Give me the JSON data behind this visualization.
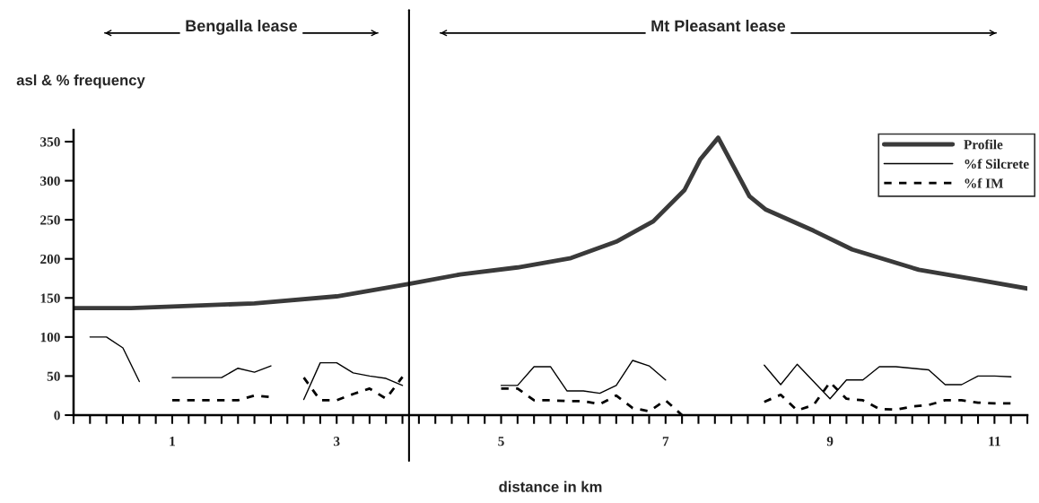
{
  "chart_data": {
    "type": "line",
    "ylabel": "asl & % frequency",
    "xlabel": "distance in km",
    "annotations": [
      "Bengalla lease",
      "Mt Pleasant lease"
    ],
    "xlim": [
      -0.2,
      11.4
    ],
    "ylim": [
      0,
      365
    ],
    "yticks": [
      0,
      50,
      100,
      150,
      200,
      250,
      300,
      350
    ],
    "xticks": [
      {
        "value": -0.2,
        "label": null
      },
      {
        "value": 0,
        "label": null
      },
      {
        "value": 0.2,
        "label": null
      },
      {
        "value": 0.4,
        "label": null
      },
      {
        "value": 0.6,
        "label": null
      },
      {
        "value": 0.8,
        "label": null
      },
      1,
      {
        "value": 1.2,
        "label": null
      },
      {
        "value": 1.4,
        "label": null
      },
      {
        "value": 1.6,
        "label": null
      },
      {
        "value": 1.8,
        "label": null
      },
      {
        "value": 2,
        "label": null
      },
      {
        "value": 2.2,
        "label": null
      },
      {
        "value": 2.4,
        "label": null
      },
      {
        "value": 2.6,
        "label": null
      },
      {
        "value": 2.8,
        "label": null
      },
      3,
      {
        "value": 3.2,
        "label": null
      },
      {
        "value": 3.4,
        "label": null
      },
      {
        "value": 3.6,
        "label": null
      },
      {
        "value": 3.8,
        "label": null
      },
      {
        "value": 4,
        "label": null
      },
      {
        "value": 4.2,
        "label": null
      },
      {
        "value": 4.4,
        "label": null
      },
      {
        "value": 4.6,
        "label": null
      },
      {
        "value": 4.8,
        "label": null
      },
      5,
      {
        "value": 5.2,
        "label": null
      },
      {
        "value": 5.4,
        "label": null
      },
      {
        "value": 5.6,
        "label": null
      },
      {
        "value": 5.8,
        "label": null
      },
      {
        "value": 6,
        "label": null
      },
      {
        "value": 6.2,
        "label": null
      },
      {
        "value": 6.4,
        "label": null
      },
      {
        "value": 6.6,
        "label": null
      },
      {
        "value": 6.8,
        "label": null
      },
      7,
      {
        "value": 7.2,
        "label": null
      },
      {
        "value": 7.4,
        "label": null
      },
      {
        "value": 7.6,
        "label": null
      },
      {
        "value": 7.8,
        "label": null
      },
      {
        "value": 8,
        "label": null
      },
      {
        "value": 8.2,
        "label": null
      },
      {
        "value": 8.4,
        "label": null
      },
      {
        "value": 8.6,
        "label": null
      },
      {
        "value": 8.8,
        "label": null
      },
      9,
      {
        "value": 9.2,
        "label": null
      },
      {
        "value": 9.4,
        "label": null
      },
      {
        "value": 9.6,
        "label": null
      },
      {
        "value": 9.8,
        "label": null
      },
      {
        "value": 10,
        "label": null
      },
      {
        "value": 10.2,
        "label": null
      },
      {
        "value": 10.4,
        "label": null
      },
      {
        "value": 10.6,
        "label": null
      },
      {
        "value": 10.8,
        "label": null
      },
      11,
      {
        "value": 11.2,
        "label": null
      },
      {
        "value": 11.4,
        "label": null
      }
    ],
    "grid": false,
    "legend": "top right",
    "ref_lines": [
      {
        "axis": "x",
        "value": 3.88,
        "color": "#000000",
        "line_style": "solid"
      }
    ],
    "series": [
      {
        "name": "Profile",
        "color": "#3a3a3a",
        "line_style": "solid",
        "x": [
          -0.2,
          0.5,
          1,
          2,
          3,
          3.88,
          4.5,
          5.2,
          5.85,
          6.4,
          6.85,
          7.23,
          7.42,
          7.64,
          8.02,
          8.22,
          8.8,
          9.27,
          10.08,
          10.8,
          11.4
        ],
        "values": [
          137,
          137,
          139,
          143,
          152,
          168,
          180,
          189,
          201,
          222,
          248,
          288,
          327,
          355,
          280,
          263,
          236,
          212,
          186,
          173,
          162
        ]
      },
      {
        "name": "%f Silcrete",
        "color": "#000000",
        "line_style": "solid",
        "x": [
          0,
          0.2,
          0.4,
          0.6,
          0.8,
          1,
          1.2,
          1.4,
          1.6,
          1.8,
          2,
          2.2,
          2.4,
          2.6,
          2.8,
          3,
          3.2,
          3.4,
          3.6,
          3.8,
          4,
          5,
          5.2,
          5.4,
          5.6,
          5.8,
          6,
          6.2,
          6.4,
          6.6,
          6.8,
          7,
          7.2,
          8.2,
          8.4,
          8.6,
          8.8,
          9,
          9.2,
          9.4,
          9.6,
          9.8,
          10,
          10.2,
          10.4,
          10.6,
          10.8,
          11,
          11.2
        ],
        "values": [
          100,
          100,
          86,
          43,
          null,
          48,
          48,
          48,
          48,
          60,
          55,
          63,
          null,
          20,
          67,
          67,
          54,
          50,
          47,
          38,
          null,
          38,
          38,
          62,
          62,
          31,
          31,
          28,
          38,
          70,
          63,
          45,
          null,
          64,
          39,
          65,
          43,
          21,
          45,
          45,
          62,
          62,
          60,
          58,
          39,
          39,
          50,
          50,
          49
        ]
      },
      {
        "name": "%f IM",
        "color": "#000000",
        "line_style": "dashed",
        "x": [
          1,
          1.2,
          1.4,
          1.6,
          1.8,
          2,
          2.2,
          2.4,
          2.6,
          2.8,
          3,
          3.2,
          3.4,
          3.6,
          3.8,
          4,
          5,
          5.2,
          5.4,
          5.6,
          5.8,
          6,
          6.2,
          6.4,
          6.6,
          6.8,
          7,
          7.2,
          7.4,
          8.2,
          8.4,
          8.6,
          8.8,
          9,
          9.2,
          9.4,
          9.6,
          9.8,
          10,
          10.2,
          10.4,
          10.6,
          10.8,
          11,
          11.2
        ],
        "values": [
          19,
          19,
          19,
          19,
          19,
          25,
          23,
          null,
          48,
          19,
          19,
          27,
          34,
          21,
          49,
          null,
          34,
          34,
          19,
          19,
          18,
          18,
          14,
          25,
          9,
          5,
          19,
          0,
          null,
          17,
          26,
          6,
          13,
          42,
          21,
          19,
          8,
          7,
          11,
          13,
          19,
          19,
          16,
          15,
          15
        ]
      }
    ]
  }
}
